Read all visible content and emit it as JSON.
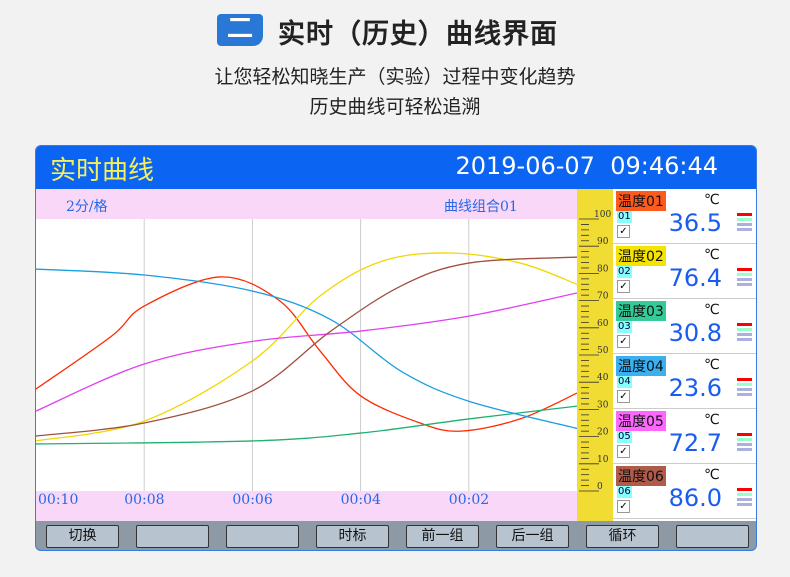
{
  "heading": {
    "badge": "二",
    "title": "实时（历史）曲线界面",
    "line1": "让您轻松知晓生产（实验）过程中变化趋势",
    "line2": "历史曲线可轻松追溯"
  },
  "screen": {
    "title": "实时曲线",
    "datetime": "2019-06-07  09:46:44",
    "interval": "2分/格",
    "group": "曲线组合01",
    "colors": {
      "header": "#0b64f2",
      "band": "#f8d7f8",
      "scale": "#f0dc32",
      "value": "#1a5cf0"
    },
    "channels": [
      {
        "name": "温度01",
        "num": "01",
        "unit": "℃",
        "value": "36.5",
        "checked": "✓",
        "color": "#ff5a1e",
        "line": "#ff2a00"
      },
      {
        "name": "温度02",
        "num": "02",
        "unit": "℃",
        "value": "76.4",
        "checked": "✓",
        "color": "#f5e400",
        "line": "#f0d800"
      },
      {
        "name": "温度03",
        "num": "03",
        "unit": "℃",
        "value": "30.8",
        "checked": "✓",
        "color": "#33cc99",
        "line": "#20b070"
      },
      {
        "name": "温度04",
        "num": "04",
        "unit": "℃",
        "value": "23.6",
        "checked": "✓",
        "color": "#3ab0f0",
        "line": "#1a9ee0"
      },
      {
        "name": "温度05",
        "num": "05",
        "unit": "℃",
        "value": "72.7",
        "checked": "✓",
        "color": "#ff66ff",
        "line": "#e040f0"
      },
      {
        "name": "温度06",
        "num": "06",
        "unit": "℃",
        "value": "86.0",
        "checked": "✓",
        "color": "#b05a4a",
        "line": "#a05040"
      }
    ],
    "buttons": [
      "切换",
      "",
      "",
      "时标",
      "前一组",
      "后一组",
      "循环",
      ""
    ]
  },
  "chart_data": {
    "type": "line",
    "x_unit": "minutes ago",
    "xlim": [
      10,
      0
    ],
    "ylim": [
      0,
      100
    ],
    "x_ticks": [
      "00:10",
      "00:08",
      "00:06",
      "00:04",
      "00:02"
    ],
    "y_ticks": [
      "100",
      "90",
      "80",
      "70",
      "60",
      "50",
      "40",
      "30",
      "20",
      "10",
      "0"
    ],
    "grid": true,
    "series": [
      {
        "channel": "01",
        "points": [
          [
            10,
            37.5
          ],
          [
            8.6,
            57
          ],
          [
            8,
            68
          ],
          [
            6.6,
            78.7
          ],
          [
            5.5,
            70
          ],
          [
            4.75,
            51.5
          ],
          [
            4,
            35
          ],
          [
            2.9,
            25
          ],
          [
            2.15,
            22
          ],
          [
            1.05,
            26.5
          ],
          [
            0,
            36
          ]
        ]
      },
      {
        "channel": "02",
        "points": [
          [
            10,
            18.4
          ],
          [
            8,
            25.7
          ],
          [
            6,
            47.8
          ],
          [
            4.75,
            71.7
          ],
          [
            3.6,
            84.5
          ],
          [
            2.35,
            87.5
          ],
          [
            1.05,
            83.8
          ],
          [
            0,
            76
          ]
        ]
      },
      {
        "channel": "03",
        "points": [
          [
            10,
            17.3
          ],
          [
            6,
            18.4
          ],
          [
            4,
            21.3
          ],
          [
            2,
            26.5
          ],
          [
            0,
            31.2
          ]
        ]
      },
      {
        "channel": "04",
        "points": [
          [
            10,
            81.6
          ],
          [
            8,
            79.4
          ],
          [
            6,
            73.5
          ],
          [
            4.55,
            63
          ],
          [
            3.25,
            44
          ],
          [
            2,
            33
          ],
          [
            0,
            23
          ]
        ]
      },
      {
        "channel": "05",
        "points": [
          [
            10,
            29.4
          ],
          [
            8,
            46.7
          ],
          [
            6,
            55
          ],
          [
            4,
            58.8
          ],
          [
            2,
            64.3
          ],
          [
            0,
            72.8
          ]
        ]
      },
      {
        "channel": "06",
        "points": [
          [
            10,
            20.2
          ],
          [
            8,
            25
          ],
          [
            6,
            36.8
          ],
          [
            4.55,
            58.8
          ],
          [
            3.25,
            75.4
          ],
          [
            2,
            83.8
          ],
          [
            0,
            86
          ]
        ]
      }
    ]
  }
}
